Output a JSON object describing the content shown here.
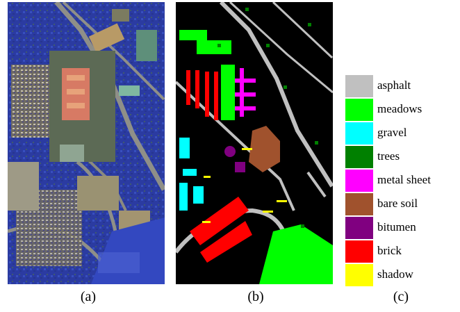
{
  "panels": {
    "a": {
      "label": "(a)"
    },
    "b": {
      "label": "(b)"
    },
    "c": {
      "label": "(c)"
    }
  },
  "legend": {
    "items": [
      {
        "name": "asphalt",
        "color": "#c0c0c0"
      },
      {
        "name": "meadows",
        "color": "#00ff00"
      },
      {
        "name": "gravel",
        "color": "#00ffff"
      },
      {
        "name": "trees",
        "color": "#008000"
      },
      {
        "name": "metal sheet",
        "color": "#ff00ff"
      },
      {
        "name": "bare soil",
        "color": "#a0522d"
      },
      {
        "name": "bitumen",
        "color": "#800080"
      },
      {
        "name": "brick",
        "color": "#ff0000"
      },
      {
        "name": "shadow",
        "color": "#ffff00"
      }
    ]
  }
}
